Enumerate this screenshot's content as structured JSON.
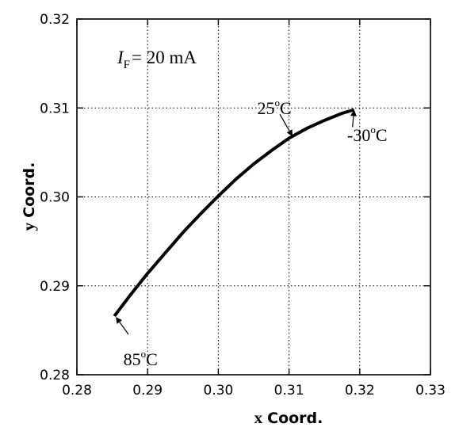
{
  "chart_data": {
    "type": "line",
    "xlabel": {
      "prefix": "x",
      "suffix": "Coord."
    },
    "ylabel": {
      "prefix": "y",
      "suffix": "Coord."
    },
    "xlim": [
      0.28,
      0.33
    ],
    "ylim": [
      0.28,
      0.32
    ],
    "xticks": [
      "0.28",
      "0.29",
      "0.30",
      "0.31",
      "0.32",
      "0.33"
    ],
    "yticks": [
      "0.28",
      "0.29",
      "0.30",
      "0.31",
      "0.32"
    ],
    "grid": true,
    "condition": {
      "symbol": "I",
      "subscript": "F",
      "text": "= 20 mA"
    },
    "series": [
      {
        "color": "#000000",
        "x": [
          0.2853,
          0.2875,
          0.29,
          0.2925,
          0.295,
          0.2975,
          0.3,
          0.3025,
          0.305,
          0.3075,
          0.31,
          0.3125,
          0.315,
          0.3175,
          0.3192
        ],
        "y": [
          0.2866,
          0.2889,
          0.2914,
          0.2937,
          0.296,
          0.2981,
          0.3001,
          0.302,
          0.3037,
          0.3052,
          0.3066,
          0.3077,
          0.3086,
          0.3094,
          0.3098
        ]
      }
    ],
    "annotations": [
      {
        "value": "25",
        "sup": "o",
        "unit": "C",
        "target": [
          0.3105,
          0.3068
        ],
        "text_at": [
          0.3055,
          0.3093
        ]
      },
      {
        "value": "-30",
        "sup": "o",
        "unit": "C",
        "target": [
          0.3192,
          0.3098
        ],
        "text_at": [
          0.3198,
          0.3076
        ]
      },
      {
        "value": "85",
        "sup": "o",
        "unit": "C",
        "target": [
          0.2855,
          0.2865
        ],
        "text_at": [
          0.2868,
          0.2817
        ]
      }
    ]
  }
}
